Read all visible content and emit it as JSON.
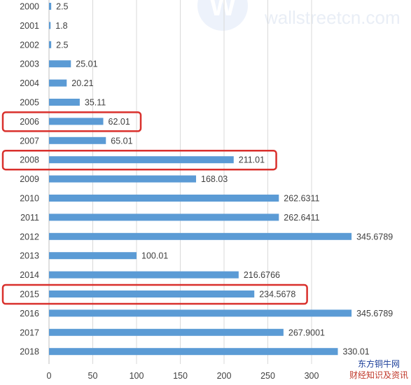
{
  "watermark": {
    "text": "wallstreetcn.com",
    "logo_letter": "W"
  },
  "source": {
    "line1": "东方铜牛网",
    "line2": "财经知识及资讯"
  },
  "colors": {
    "bar": "#5b9bd5",
    "highlight": "#d9302c",
    "grid": "#d9d9d9",
    "axis": "#bfbfbf"
  },
  "chart_data": {
    "type": "bar",
    "orientation": "horizontal",
    "title": "",
    "xlabel": "",
    "ylabel": "",
    "xlim": [
      0,
      330
    ],
    "x_ticks": [
      0,
      50,
      100,
      150,
      200,
      250,
      300
    ],
    "grid": true,
    "categories": [
      "2000",
      "2001",
      "2002",
      "2003",
      "2004",
      "2005",
      "2006",
      "2007",
      "2008",
      "2009",
      "2010",
      "2011",
      "2012",
      "2013",
      "2014",
      "2015",
      "2016",
      "2017",
      "2018"
    ],
    "values": [
      2.5,
      1.8,
      2.5,
      25.01,
      20.21,
      35.11,
      62.01,
      65.01,
      211.01,
      168.03,
      262.6311,
      262.6411,
      345.6789,
      100.01,
      216.6766,
      234.5678,
      345.6789,
      267.9001,
      330.01
    ],
    "value_labels": [
      "2.5",
      "1.8",
      "2.5",
      "25.01",
      "20.21",
      "35.11",
      "62.01",
      "65.01",
      "211.01",
      "168.03",
      "262.6311",
      "262.6411",
      "345.6789",
      "100.01",
      "216.6766",
      "234.5678",
      "345.6789",
      "267.9001",
      "330.01"
    ],
    "highlighted": [
      "2006",
      "2008",
      "2015"
    ]
  }
}
